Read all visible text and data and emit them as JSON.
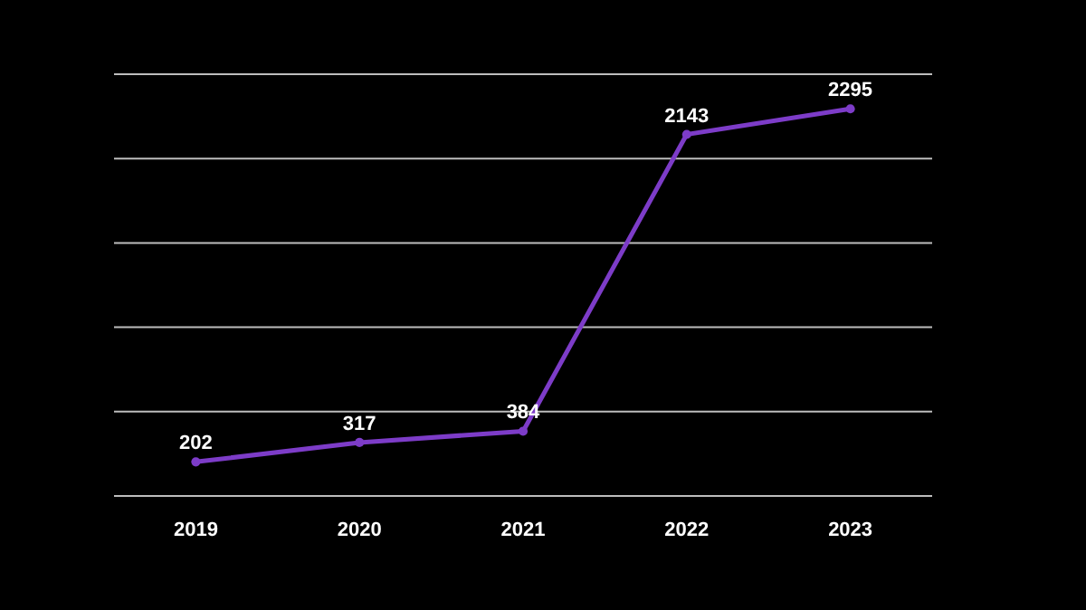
{
  "chart_data": {
    "type": "line",
    "categories": [
      "2019",
      "2020",
      "2021",
      "2022",
      "2023"
    ],
    "series": [
      {
        "color": "#7d3cc8",
        "values": [
          202,
          317,
          384,
          2143,
          2295
        ]
      }
    ],
    "ylim": [
      0,
      2500
    ],
    "yticks": [
      {
        "value": 0,
        "label": null
      },
      {
        "value": 500,
        "label": null
      },
      {
        "value": 1000,
        "label": null
      },
      {
        "value": 1500,
        "label": null
      },
      {
        "value": 2000,
        "label": null
      },
      {
        "value": 2500,
        "label": null
      }
    ],
    "grid": "y",
    "tick_labels": "x",
    "data_labels": true,
    "marker": "circle",
    "line_style": "solid"
  }
}
